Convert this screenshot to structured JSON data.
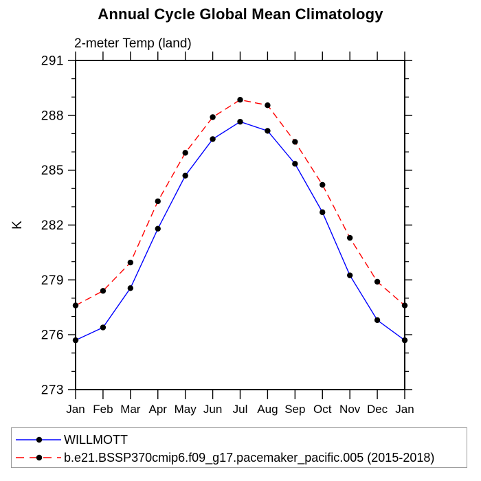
{
  "header": {
    "title": "Annual Cycle Global Mean Climatology"
  },
  "chart_data": {
    "type": "line",
    "title": "Annual Cycle Global Mean Climatology",
    "subtitle": "2-meter Temp (land)",
    "xlabel": "",
    "ylabel": "K",
    "categories": [
      "Jan",
      "Feb",
      "Mar",
      "Apr",
      "May",
      "Jun",
      "Jul",
      "Aug",
      "Sep",
      "Oct",
      "Nov",
      "Dec",
      "Jan"
    ],
    "ylim": [
      273,
      291
    ],
    "yticks": [
      273,
      276,
      279,
      282,
      285,
      288,
      291
    ],
    "yminor_step": 1,
    "grid": "off",
    "legend_position": "bottom-box",
    "marker": {
      "shape": "circle",
      "color": "#000000",
      "radius": 4.2
    },
    "axis_color": "#000000",
    "series": [
      {
        "name": "WILLMOTT",
        "color": "#0000ff",
        "line_style": "solid",
        "values": [
          275.7,
          276.4,
          278.55,
          281.8,
          284.7,
          286.7,
          287.65,
          287.15,
          285.35,
          282.7,
          279.25,
          276.8,
          275.7
        ]
      },
      {
        "name": "b.e21.BSSP370cmip6.f09_g17.pacemaker_pacific.005 (2015-2018)",
        "color": "#ff0000",
        "line_style": "dashed",
        "values": [
          277.6,
          278.4,
          279.95,
          283.3,
          285.95,
          287.9,
          288.85,
          288.55,
          286.55,
          284.2,
          281.3,
          278.9,
          277.6
        ]
      }
    ]
  }
}
